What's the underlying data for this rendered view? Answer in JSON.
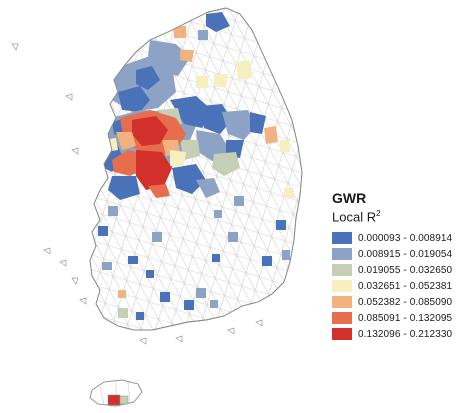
{
  "legend": {
    "title": "GWR",
    "subtitle": "Local R",
    "subtitle_superscript": "2",
    "classes": [
      {
        "label": "0.000093 - 0.008914",
        "color": "#4a72b8"
      },
      {
        "label": "0.008915 - 0.019054",
        "color": "#8da3c5"
      },
      {
        "label": "0.019055 - 0.032650",
        "color": "#c4cfb6"
      },
      {
        "label": "0.032651 - 0.052381",
        "color": "#f6efc0"
      },
      {
        "label": "0.052382 - 0.085090",
        "color": "#f2b27f"
      },
      {
        "label": "0.085091 - 0.132095",
        "color": "#e66d4e"
      },
      {
        "label": "0.132096 - 0.212330",
        "color": "#d3302c"
      }
    ]
  },
  "map": {
    "region": "South Korea (mainland and Jeju island)",
    "fill_background": "#ffffff",
    "boundary_color": "#b8b8b8"
  }
}
